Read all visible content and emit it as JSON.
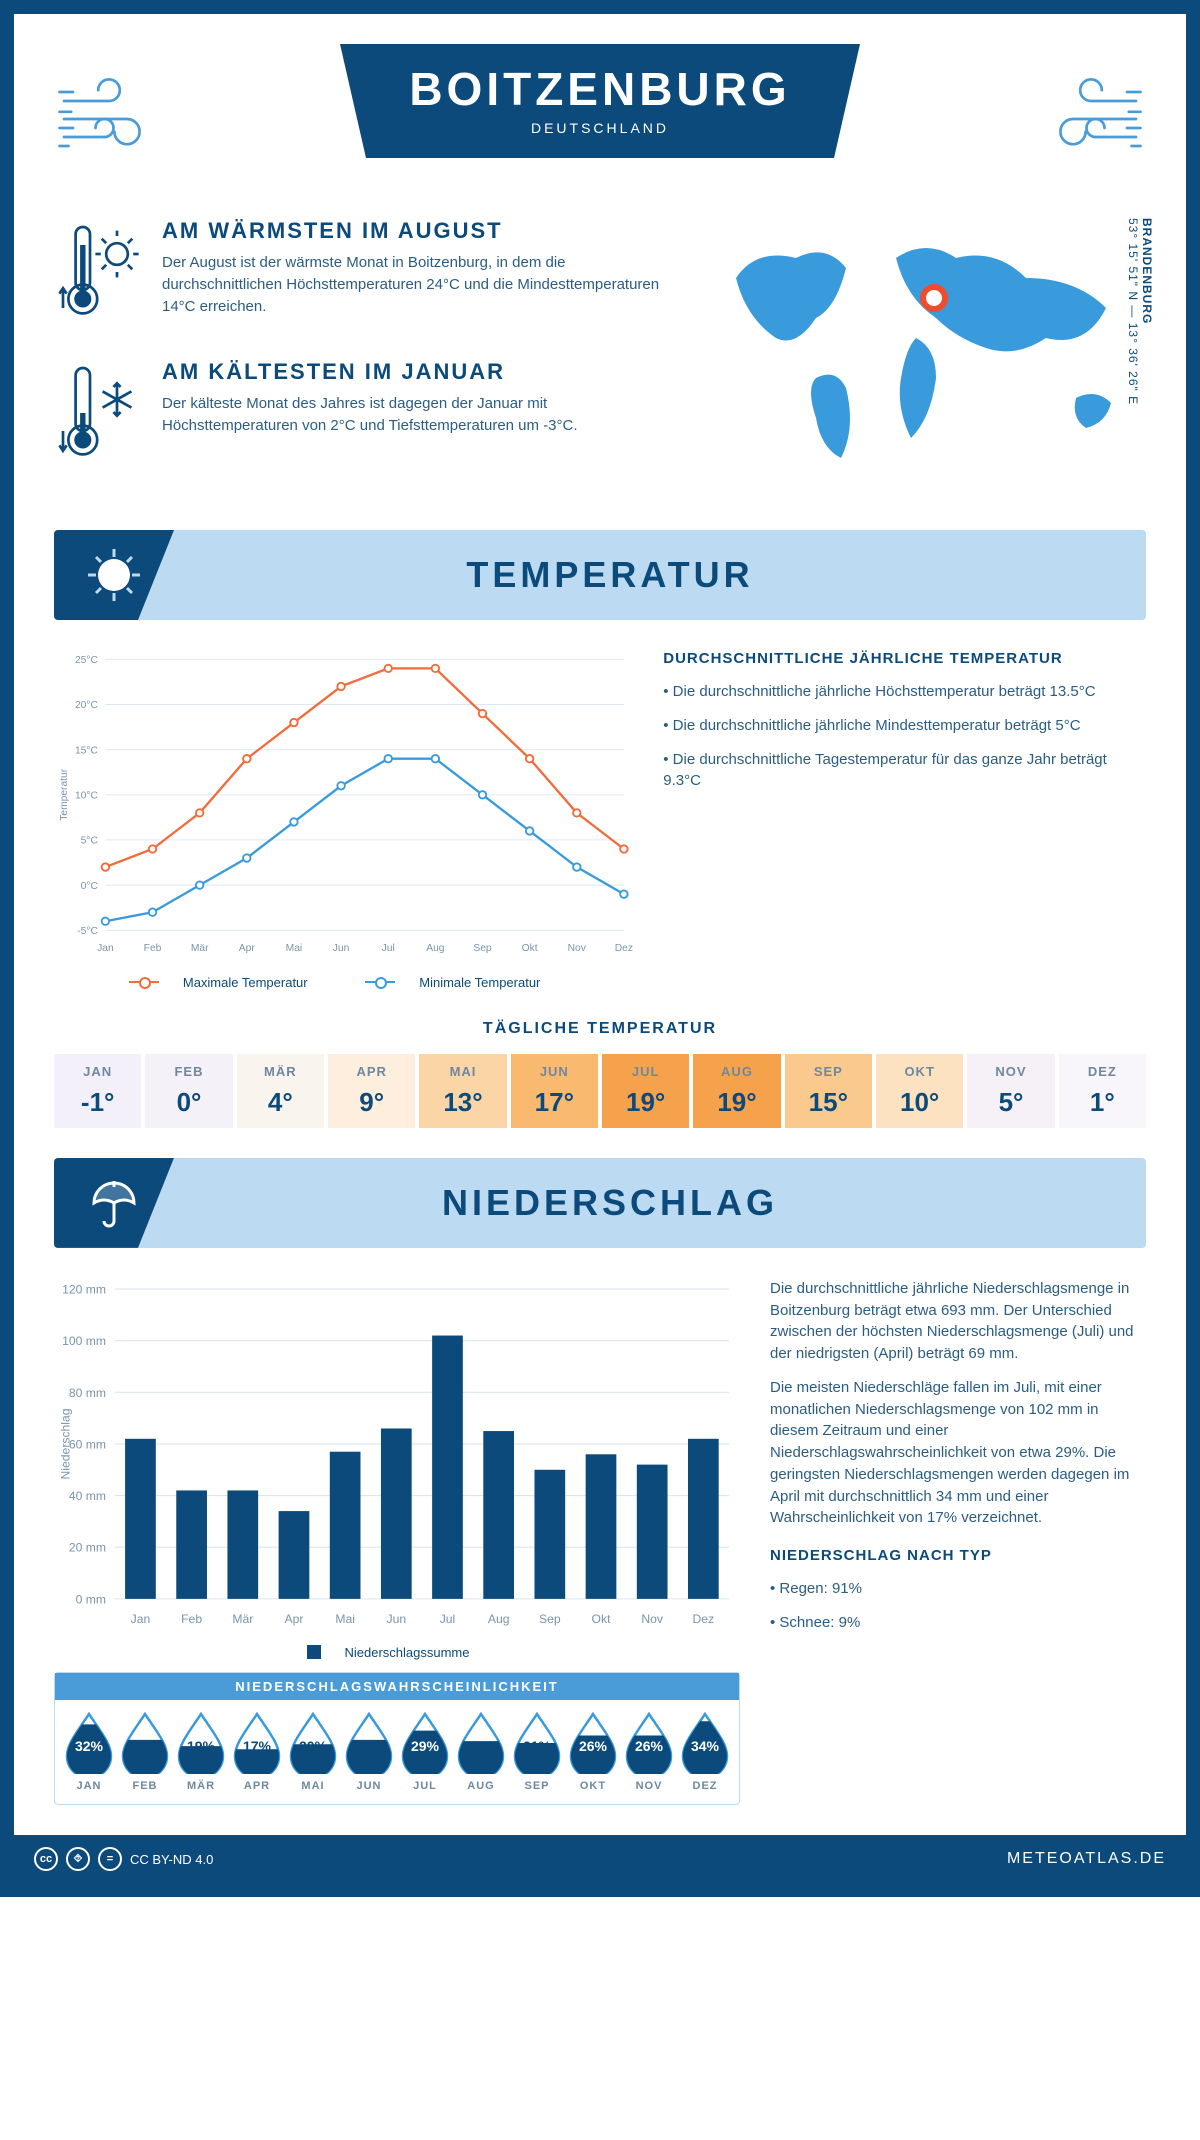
{
  "header": {
    "city": "BOITZENBURG",
    "country": "DEUTSCHLAND",
    "coords": "53° 15' 51\" N — 13° 36' 26\" E",
    "region": "BRANDENBURG"
  },
  "warm": {
    "title": "AM WÄRMSTEN IM AUGUST",
    "text": "Der August ist der wärmste Monat in Boitzenburg, in dem die durchschnittlichen Höchsttemperaturen 24°C und die Mindesttemperaturen 14°C erreichen."
  },
  "cold": {
    "title": "AM KÄLTESTEN IM JANUAR",
    "text": "Der kälteste Monat des Jahres ist dagegen der Januar mit Höchsttemperaturen von 2°C und Tiefsttemperaturen um -3°C."
  },
  "temp_section": "TEMPERATUR",
  "temp_chart": {
    "type": "line",
    "ylabel": "Temperatur",
    "months": [
      "Jan",
      "Feb",
      "Mär",
      "Apr",
      "Mai",
      "Jun",
      "Jul",
      "Aug",
      "Sep",
      "Okt",
      "Nov",
      "Dez"
    ],
    "ylim": [
      -5,
      25
    ],
    "yticks": [
      "-5°C",
      "0°C",
      "5°C",
      "10°C",
      "15°C",
      "20°C",
      "25°C"
    ],
    "max_series": [
      2,
      4,
      8,
      14,
      18,
      22,
      24,
      24,
      19,
      14,
      8,
      4
    ],
    "min_series": [
      -4,
      -3,
      0,
      3,
      7,
      11,
      14,
      14,
      10,
      6,
      2,
      -1
    ],
    "max_color": "#f26b3a",
    "min_color": "#3a9bdc",
    "grid_color": "#d9e6f2",
    "background": "#ffffff",
    "legend_max": "Maximale Temperatur",
    "legend_min": "Minimale Temperatur"
  },
  "temp_side": {
    "title": "DURCHSCHNITTLICHE JÄHRLICHE TEMPERATUR",
    "b1": "• Die durchschnittliche jährliche Höchsttemperatur beträgt 13.5°C",
    "b2": "• Die durchschnittliche jährliche Mindesttemperatur beträgt 5°C",
    "b3": "• Die durchschnittliche Tagestemperatur für das ganze Jahr beträgt 9.3°C"
  },
  "daily": {
    "title": "TÄGLICHE TEMPERATUR",
    "months": [
      "JAN",
      "FEB",
      "MÄR",
      "APR",
      "MAI",
      "JUN",
      "JUL",
      "AUG",
      "SEP",
      "OKT",
      "NOV",
      "DEZ"
    ],
    "values": [
      "-1°",
      "0°",
      "4°",
      "9°",
      "13°",
      "17°",
      "19°",
      "19°",
      "15°",
      "10°",
      "5°",
      "1°"
    ],
    "colors": [
      "#f3f0fa",
      "#f5f1f8",
      "#faf4ef",
      "#fdeedd",
      "#fbd5a6",
      "#f9b96f",
      "#f6a14c",
      "#f6a14c",
      "#fac98d",
      "#fde2c1",
      "#f6f1f6",
      "#f9f6fb"
    ]
  },
  "precip_section": "NIEDERSCHLAG",
  "precip_chart": {
    "type": "bar",
    "ylabel": "Niederschlag",
    "months": [
      "Jan",
      "Feb",
      "Mär",
      "Apr",
      "Mai",
      "Jun",
      "Jul",
      "Aug",
      "Sep",
      "Okt",
      "Nov",
      "Dez"
    ],
    "values": [
      62,
      42,
      42,
      34,
      57,
      66,
      102,
      65,
      50,
      56,
      52,
      62
    ],
    "ylim": [
      0,
      120
    ],
    "yticks": [
      "0 mm",
      "20 mm",
      "40 mm",
      "60 mm",
      "80 mm",
      "100 mm",
      "120 mm"
    ],
    "bar_color": "#0b4a7a",
    "grid_color": "#d9e6f2",
    "legend": "Niederschlagssumme"
  },
  "precip_text": {
    "p1": "Die durchschnittliche jährliche Niederschlagsmenge in Boitzenburg beträgt etwa 693 mm. Der Unterschied zwischen der höchsten Niederschlagsmenge (Juli) und der niedrigsten (April) beträgt 69 mm.",
    "p2": "Die meisten Niederschläge fallen im Juli, mit einer monatlichen Niederschlagsmenge von 102 mm in diesem Zeitraum und einer Niederschlagswahrscheinlichkeit von etwa 29%. Die geringsten Niederschlagsmengen werden dagegen im April mit durchschnittlich 34 mm und einer Wahrscheinlichkeit von 17% verzeichnet.",
    "type_title": "NIEDERSCHLAG NACH TYP",
    "t1": "• Regen: 91%",
    "t2": "• Schnee: 9%"
  },
  "prob": {
    "title": "NIEDERSCHLAGSWAHRSCHEINLICHKEIT",
    "months": [
      "JAN",
      "FEB",
      "MÄR",
      "APR",
      "MAI",
      "JUN",
      "JUL",
      "AUG",
      "SEP",
      "OKT",
      "NOV",
      "DEZ"
    ],
    "pct": [
      "32%",
      "23%",
      "19%",
      "17%",
      "20%",
      "23%",
      "29%",
      "22%",
      "21%",
      "26%",
      "26%",
      "34%"
    ],
    "fill": [
      0.8,
      0.55,
      0.45,
      0.4,
      0.48,
      0.55,
      0.7,
      0.53,
      0.5,
      0.62,
      0.62,
      0.85
    ],
    "line_color": "#3a9bdc",
    "fill_color": "#0b4a7a"
  },
  "footer": {
    "license": "CC BY-ND 4.0",
    "brand": "METEOATLAS.DE"
  }
}
